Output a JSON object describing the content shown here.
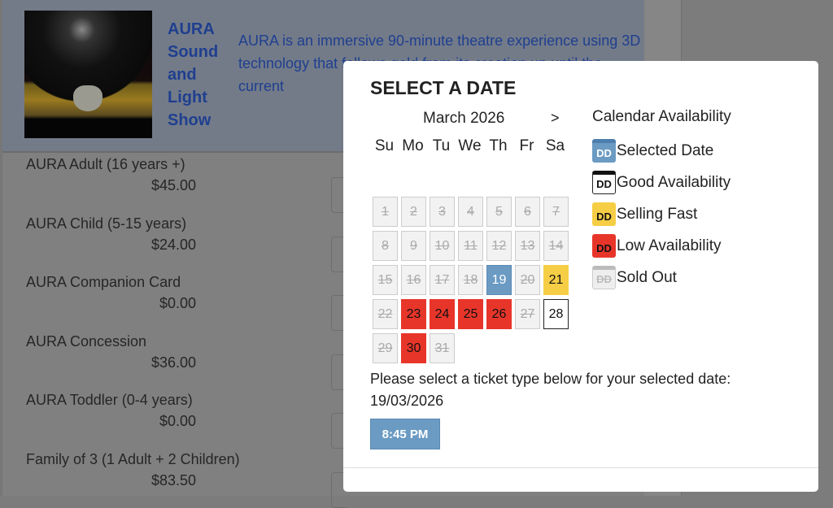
{
  "event": {
    "title": "AURA Sound and Light Show",
    "description": "AURA is an immersive 90-minute theatre experience using 3D technology that follows gold from its creation up until the current"
  },
  "tickets": [
    {
      "name": "AURA Adult (16 years +)",
      "price": "$45.00"
    },
    {
      "name": "AURA Child (5-15 years)",
      "price": "$24.00"
    },
    {
      "name": "AURA Companion Card",
      "price": "$0.00"
    },
    {
      "name": "AURA Concession",
      "price": "$36.00"
    },
    {
      "name": "AURA Toddler (0-4 years)",
      "price": "$0.00"
    },
    {
      "name": "Family of 3 (1 Adult + 2 Children)",
      "price": "$83.50"
    }
  ],
  "modal": {
    "title": "SELECT A DATE",
    "month": "March 2026",
    "next": ">",
    "weekdays": [
      "Su",
      "Mo",
      "Tu",
      "We",
      "Th",
      "Fr",
      "Sa"
    ],
    "days": [
      {
        "d": "1",
        "s": "sold"
      },
      {
        "d": "2",
        "s": "sold"
      },
      {
        "d": "3",
        "s": "sold"
      },
      {
        "d": "4",
        "s": "sold"
      },
      {
        "d": "5",
        "s": "sold"
      },
      {
        "d": "6",
        "s": "sold"
      },
      {
        "d": "7",
        "s": "sold"
      },
      {
        "d": "8",
        "s": "sold"
      },
      {
        "d": "9",
        "s": "sold"
      },
      {
        "d": "10",
        "s": "sold"
      },
      {
        "d": "11",
        "s": "sold"
      },
      {
        "d": "12",
        "s": "sold"
      },
      {
        "d": "13",
        "s": "sold"
      },
      {
        "d": "14",
        "s": "sold"
      },
      {
        "d": "15",
        "s": "sold"
      },
      {
        "d": "16",
        "s": "sold"
      },
      {
        "d": "17",
        "s": "sold"
      },
      {
        "d": "18",
        "s": "sold"
      },
      {
        "d": "19",
        "s": "selected"
      },
      {
        "d": "20",
        "s": "sold"
      },
      {
        "d": "21",
        "s": "fast"
      },
      {
        "d": "22",
        "s": "sold"
      },
      {
        "d": "23",
        "s": "low"
      },
      {
        "d": "24",
        "s": "low"
      },
      {
        "d": "25",
        "s": "low"
      },
      {
        "d": "26",
        "s": "low"
      },
      {
        "d": "27",
        "s": "sold"
      },
      {
        "d": "28",
        "s": "good"
      },
      {
        "d": "29",
        "s": "sold"
      },
      {
        "d": "30",
        "s": "low"
      },
      {
        "d": "31",
        "s": "sold"
      }
    ],
    "legend_title": "Calendar Availability",
    "legend": [
      {
        "key": "selected",
        "icon": "DD",
        "label": "Selected Date",
        "color": "#6b9bc3"
      },
      {
        "key": "good",
        "icon": "DD",
        "label": "Good Availability",
        "color": "#ffffff"
      },
      {
        "key": "fast",
        "icon": "DD",
        "label": "Selling Fast",
        "color": "#f6ce45"
      },
      {
        "key": "low",
        "icon": "DD",
        "label": "Low Availability",
        "color": "#e8352a"
      },
      {
        "key": "sold",
        "icon": "DD",
        "label": "Sold Out",
        "color": "#eeeeee"
      }
    ],
    "message": "Please select a ticket type below for your selected date:",
    "selected_date": "19/03/2026",
    "times": [
      "8:45 PM"
    ]
  }
}
